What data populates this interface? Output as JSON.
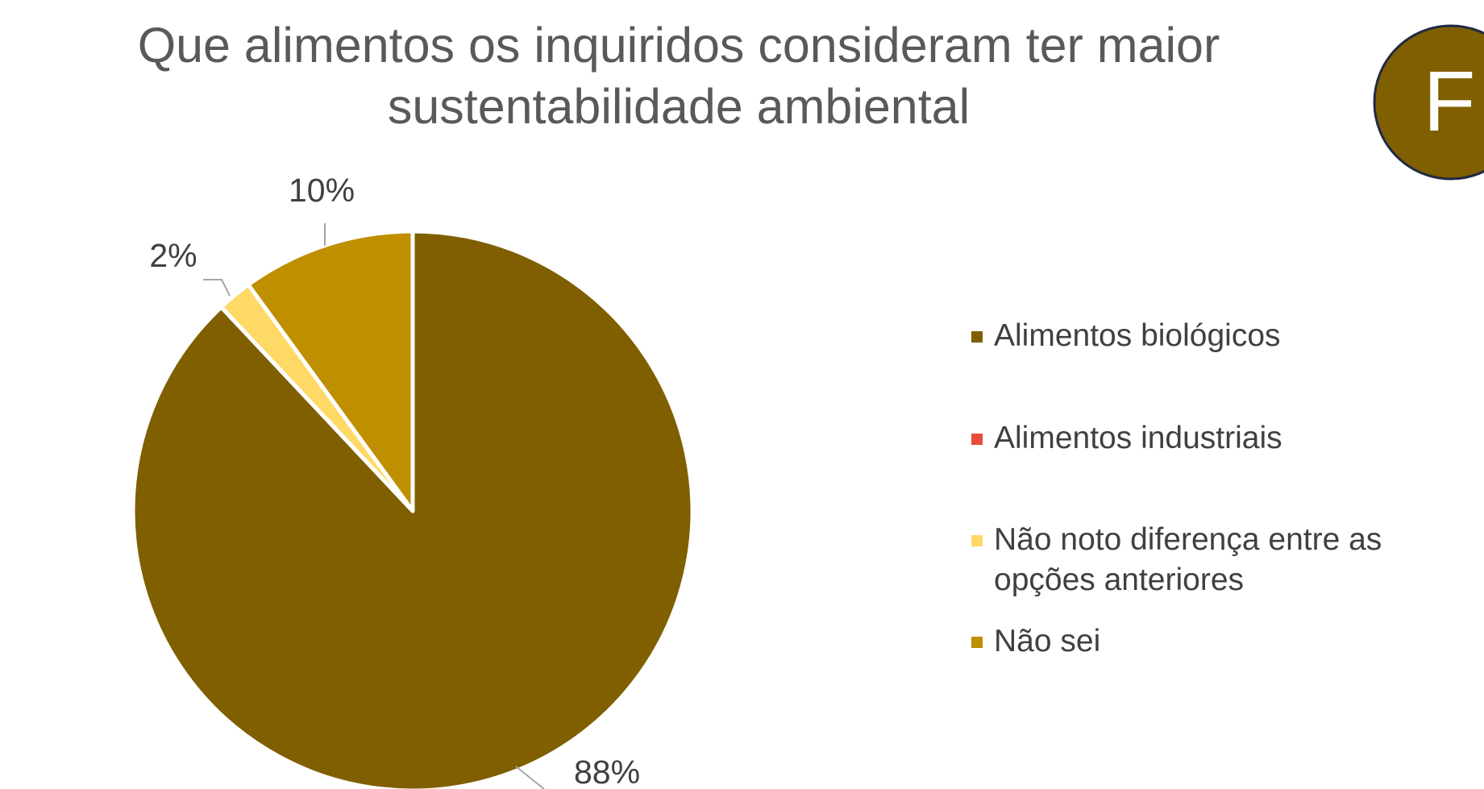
{
  "chart_data": {
    "type": "pie",
    "title": "Que alimentos os inquiridos consideram ter maior sustentabilidade ambiental",
    "badge": "F",
    "categories": [
      "Alimentos biológicos",
      "Alimentos industriais",
      "Não noto diferença entre as opções anteriores",
      "Não sei"
    ],
    "values": [
      88,
      0,
      2,
      10
    ],
    "value_labels": [
      "88%",
      null,
      "2%",
      "10%"
    ],
    "colors": [
      "#7f5f00",
      "#e84c3d",
      "#ffd966",
      "#bf8f00"
    ],
    "legend": "right"
  }
}
